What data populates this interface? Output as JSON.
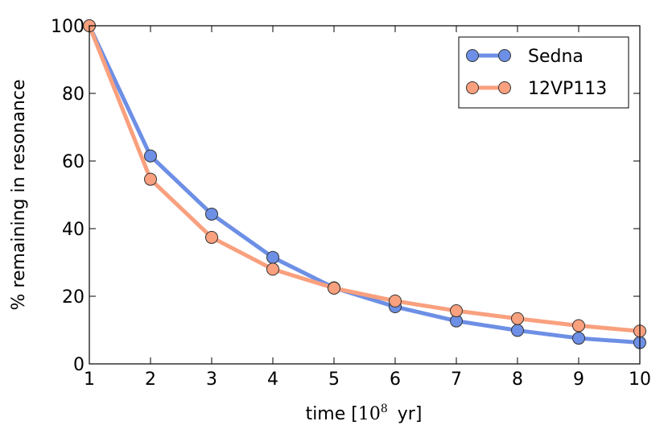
{
  "chart_data": {
    "type": "line",
    "title": "",
    "xlabel_prefix": "time [",
    "xlabel_base": "10",
    "xlabel_exp": "8",
    "xlabel_suffix": "yr]",
    "ylabel": "% remaining in resonance",
    "xlim": [
      1,
      10
    ],
    "ylim": [
      0,
      100
    ],
    "xticks": [
      1,
      2,
      3,
      4,
      5,
      6,
      7,
      8,
      9,
      10
    ],
    "yticks": [
      0,
      20,
      40,
      60,
      80,
      100
    ],
    "grid": false,
    "legend_position": "top-right",
    "series": [
      {
        "name": "Sedna",
        "color": "#6d8fe5",
        "x": [
          1,
          2,
          3,
          4,
          5,
          6,
          7,
          8,
          9,
          10
        ],
        "values": [
          100,
          61.5,
          44.3,
          31.5,
          22.5,
          16.9,
          12.7,
          9.9,
          7.6,
          6.3
        ]
      },
      {
        "name": "12VP113",
        "color": "#f9a07e",
        "x": [
          1,
          2,
          3,
          4,
          5,
          6,
          7,
          8,
          9,
          10
        ],
        "values": [
          100,
          54.6,
          37.4,
          28.0,
          22.4,
          18.6,
          15.7,
          13.4,
          11.3,
          9.7
        ]
      }
    ]
  }
}
